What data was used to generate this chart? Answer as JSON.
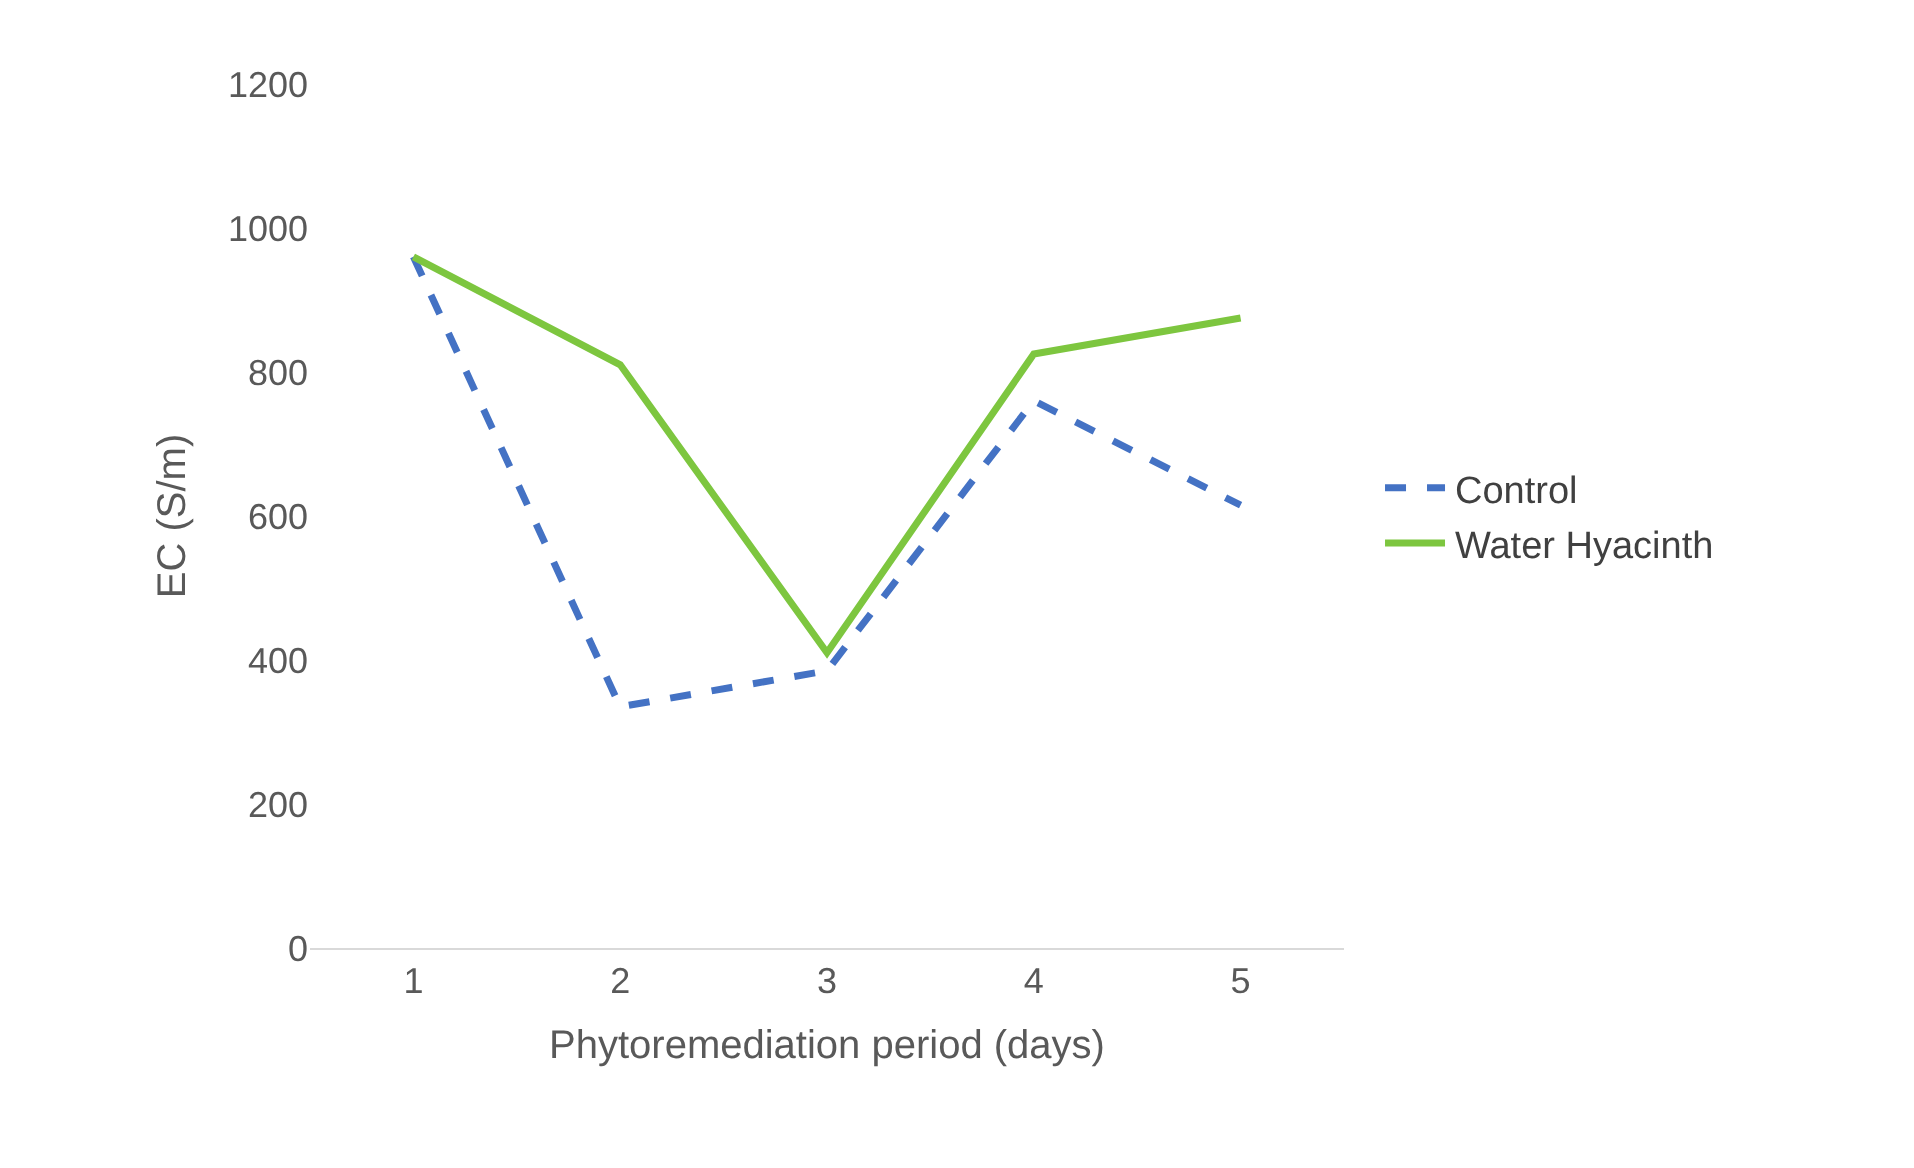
{
  "chart_data": {
    "type": "line",
    "xlabel": "Phytoremediation period (days)",
    "ylabel": "EC (S/m)",
    "categories": [
      "1",
      "2",
      "3",
      "4",
      "5"
    ],
    "series": [
      {
        "name": "Control",
        "color": "#4472c4",
        "line_style": "dashed",
        "values": [
          960,
          335,
          385,
          760,
          615
        ]
      },
      {
        "name": "Water Hyacinth",
        "color": "#7dc63f",
        "line_style": "solid",
        "values": [
          960,
          810,
          410,
          825,
          875
        ]
      }
    ],
    "ylim": [
      0,
      1200
    ],
    "yticks": [
      0,
      200,
      400,
      600,
      800,
      1000,
      1200
    ],
    "grid": false,
    "legend": "right",
    "marker": "none"
  }
}
